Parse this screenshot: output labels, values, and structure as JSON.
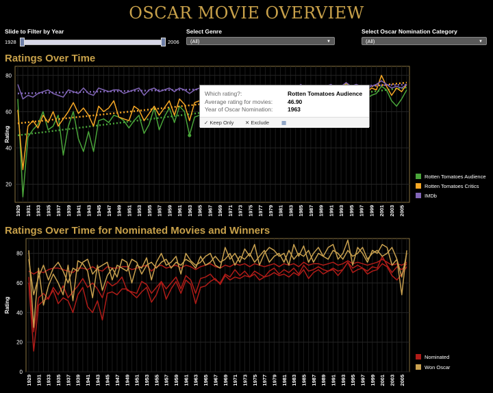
{
  "title": "OSCAR MOVIE OVERVIEW",
  "filters": {
    "year_label": "Slide to Filter by Year",
    "year_min": "1928",
    "year_max": "2006",
    "genre_label": "Select Genre",
    "genre_value": "(All)",
    "category_label": "Select Oscar Nomination Category",
    "category_value": "(All)"
  },
  "sections": {
    "top": "Ratings Over Time",
    "bottom": "Ratings Over Time for Nominated Movies and Winners"
  },
  "tooltip": {
    "k1": "Which rating?:",
    "v1": "Rotten Tomatoes Audience",
    "k2": "Average rating for movies:",
    "v2": "46.90",
    "k3": "Year of Oscar Nomination:",
    "v3": "1963",
    "keep": "Keep Only",
    "exclude": "Exclude"
  },
  "icons": [
    "checkmark-icon",
    "x-icon",
    "grid-icon",
    "chevron-down-icon"
  ],
  "chart_data": [
    {
      "type": "line",
      "title": "Ratings Over Time",
      "ylabel": "Rating",
      "ylim": [
        10,
        85
      ],
      "yticks": [
        20,
        40,
        60,
        80
      ],
      "x": [
        1929,
        1930,
        1931,
        1932,
        1933,
        1934,
        1935,
        1936,
        1937,
        1938,
        1939,
        1940,
        1941,
        1942,
        1943,
        1944,
        1945,
        1946,
        1947,
        1948,
        1949,
        1950,
        1951,
        1952,
        1953,
        1954,
        1955,
        1956,
        1957,
        1958,
        1959,
        1960,
        1961,
        1962,
        1963,
        1964,
        1965,
        1966,
        1967,
        1968,
        1969,
        1970,
        1971,
        1972,
        1973,
        1974,
        1975,
        1976,
        1977,
        1978,
        1979,
        1980,
        1981,
        1982,
        1983,
        1984,
        1985,
        1986,
        1987,
        1988,
        1989,
        1990,
        1991,
        1992,
        1993,
        1994,
        1995,
        1996,
        1997,
        1998,
        1999,
        2000,
        2001,
        2002,
        2003,
        2004,
        2005,
        2006
      ],
      "xtick_labels": [
        "1929",
        "1931",
        "1933",
        "1935",
        "1937",
        "1939",
        "1941",
        "1943",
        "1945",
        "1947",
        "1949",
        "1951",
        "1953",
        "1955",
        "1957",
        "1959",
        "1961",
        "1963",
        "1965",
        "1967",
        "1969",
        "1971",
        "1973",
        "1975",
        "1977",
        "1979",
        "1981",
        "1983",
        "1985",
        "1987",
        "1989",
        "1991",
        "1993",
        "1995",
        "1997",
        "1999",
        "2001",
        "2003",
        "2005"
      ],
      "legend_position": "right",
      "grid": true,
      "series": [
        {
          "name": "Rotten Tomatoes Audience",
          "color": "#4aa63a",
          "values": [
            67,
            13,
            46,
            50,
            53,
            60,
            50,
            52,
            58,
            36,
            52,
            60,
            45,
            38,
            49,
            38,
            55,
            56,
            54,
            58,
            57,
            55,
            51,
            55,
            58,
            48,
            53,
            62,
            50,
            57,
            62,
            54,
            63,
            60,
            47,
            57,
            58,
            62,
            64,
            60,
            66,
            63,
            65,
            64,
            66,
            65,
            67,
            63,
            65,
            66,
            68,
            66,
            67,
            65,
            68,
            66,
            70,
            64,
            68,
            70,
            67,
            69,
            70,
            66,
            70,
            75,
            68,
            70,
            71,
            67,
            69,
            70,
            74,
            72,
            66,
            63,
            67,
            72
          ]
        },
        {
          "name": "Rotten Tomatoes Critics",
          "color": "#f7a825",
          "values": [
            61,
            28,
            52,
            55,
            51,
            58,
            54,
            60,
            52,
            56,
            60,
            65,
            59,
            62,
            58,
            52,
            63,
            60,
            62,
            66,
            57,
            56,
            55,
            63,
            61,
            55,
            59,
            63,
            58,
            62,
            66,
            58,
            67,
            64,
            55,
            65,
            66,
            68,
            64,
            62,
            68,
            66,
            71,
            67,
            70,
            66,
            70,
            68,
            66,
            70,
            72,
            68,
            71,
            69,
            72,
            68,
            74,
            70,
            71,
            73,
            71,
            70,
            72,
            70,
            71,
            76,
            72,
            74,
            72,
            70,
            73,
            72,
            80,
            74,
            69,
            73,
            71,
            75
          ]
        },
        {
          "name": "IMDb",
          "color": "#8266b8",
          "values": [
            75,
            67,
            69,
            68,
            70,
            71,
            72,
            70,
            69,
            68,
            72,
            71,
            70,
            73,
            70,
            69,
            73,
            72,
            71,
            72,
            72,
            70,
            71,
            72,
            73,
            69,
            72,
            73,
            71,
            72,
            73,
            71,
            73,
            72,
            70,
            72,
            73,
            74,
            72,
            71,
            73,
            72,
            74,
            73,
            74,
            72,
            74,
            73,
            72,
            73,
            74,
            72,
            74,
            73,
            74,
            72,
            75,
            73,
            74,
            74,
            73,
            74,
            75,
            73,
            74,
            76,
            74,
            75,
            74,
            73,
            74,
            75,
            77,
            75,
            73,
            74,
            73,
            75
          ]
        }
      ]
    },
    {
      "type": "line",
      "title": "Ratings Over Time for Nominated Movies and Winners",
      "ylabel": "Rating",
      "ylim": [
        0,
        90
      ],
      "yticks": [
        0,
        20,
        40,
        60,
        80
      ],
      "x": [
        1929,
        1930,
        1931,
        1932,
        1933,
        1934,
        1935,
        1936,
        1937,
        1938,
        1939,
        1940,
        1941,
        1942,
        1943,
        1944,
        1945,
        1946,
        1947,
        1948,
        1949,
        1950,
        1951,
        1952,
        1953,
        1954,
        1955,
        1956,
        1957,
        1958,
        1959,
        1960,
        1961,
        1962,
        1963,
        1964,
        1965,
        1966,
        1967,
        1968,
        1969,
        1970,
        1971,
        1972,
        1973,
        1974,
        1975,
        1976,
        1977,
        1978,
        1979,
        1980,
        1981,
        1982,
        1983,
        1984,
        1985,
        1986,
        1987,
        1988,
        1989,
        1990,
        1991,
        1992,
        1993,
        1994,
        1995,
        1996,
        1997,
        1998,
        1999,
        2000,
        2001,
        2002,
        2003,
        2004,
        2005,
        2006
      ],
      "xtick_labels": [
        "1929",
        "1931",
        "1933",
        "1935",
        "1937",
        "1939",
        "1941",
        "1943",
        "1945",
        "1947",
        "1949",
        "1951",
        "1953",
        "1955",
        "1957",
        "1959",
        "1961",
        "1963",
        "1965",
        "1967",
        "1969",
        "1971",
        "1973",
        "1975",
        "1977",
        "1979",
        "1981",
        "1983",
        "1985",
        "1987",
        "1989",
        "1991",
        "1993",
        "1995",
        "1997",
        "1999",
        "2001",
        "2003",
        "2005"
      ],
      "legend_position": "right",
      "grid": true,
      "series": [
        {
          "name": "Nominated",
          "color": "#b01c18",
          "values": [
            60,
            14,
            45,
            48,
            50,
            55,
            46,
            50,
            48,
            40,
            52,
            57,
            44,
            40,
            48,
            35,
            53,
            54,
            52,
            56,
            56,
            53,
            50,
            54,
            57,
            47,
            52,
            61,
            49,
            56,
            61,
            53,
            62,
            59,
            46,
            57,
            58,
            61,
            63,
            59,
            65,
            62,
            64,
            63,
            65,
            64,
            66,
            62,
            64,
            65,
            67,
            65,
            66,
            64,
            67,
            65,
            69,
            63,
            67,
            69,
            66,
            68,
            69,
            65,
            69,
            74,
            67,
            69,
            70,
            66,
            68,
            69,
            73,
            71,
            65,
            62,
            66,
            71
          ]
        },
        {
          "name": "Nominated",
          "color": "#b01c18",
          "values": [
            64,
            27,
            50,
            53,
            49,
            57,
            52,
            58,
            50,
            54,
            58,
            63,
            57,
            60,
            56,
            50,
            61,
            58,
            60,
            64,
            55,
            54,
            53,
            61,
            59,
            53,
            57,
            61,
            56,
            60,
            64,
            56,
            65,
            62,
            53,
            63,
            64,
            66,
            62,
            60,
            66,
            64,
            69,
            65,
            68,
            64,
            68,
            66,
            64,
            68,
            70,
            66,
            69,
            67,
            70,
            66,
            72,
            68,
            69,
            71,
            69,
            68,
            70,
            68,
            69,
            74,
            70,
            72,
            70,
            68,
            71,
            70,
            78,
            72,
            67,
            71,
            69,
            73
          ]
        },
        {
          "name": "Nominated",
          "color": "#b01c18",
          "values": [
            68,
            66,
            68,
            67,
            69,
            70,
            70,
            69,
            68,
            67,
            70,
            70,
            69,
            71,
            69,
            68,
            71,
            70,
            70,
            71,
            71,
            69,
            70,
            71,
            72,
            68,
            71,
            72,
            70,
            71,
            72,
            70,
            72,
            71,
            69,
            71,
            72,
            73,
            71,
            70,
            72,
            71,
            73,
            72,
            73,
            71,
            73,
            72,
            71,
            72,
            73,
            71,
            73,
            72,
            73,
            71,
            74,
            72,
            73,
            73,
            72,
            73,
            74,
            72,
            73,
            75,
            73,
            74,
            73,
            72,
            73,
            74,
            76,
            74,
            72,
            73,
            72,
            74
          ]
        },
        {
          "name": "Won Oscar",
          "color": "#c9a14f",
          "values": [
            82,
            30,
            70,
            45,
            58,
            66,
            60,
            52,
            72,
            48,
            75,
            73,
            68,
            50,
            72,
            55,
            65,
            70,
            64,
            76,
            74,
            60,
            72,
            70,
            77,
            62,
            74,
            80,
            72,
            74,
            78,
            66,
            80,
            75,
            72,
            74,
            78,
            80,
            72,
            70,
            84,
            76,
            80,
            74,
            83,
            78,
            86,
            72,
            80,
            84,
            82,
            78,
            80,
            72,
            86,
            78,
            85,
            74,
            80,
            84,
            78,
            84,
            86,
            76,
            80,
            89,
            72,
            84,
            80,
            74,
            82,
            80,
            86,
            84,
            72,
            76,
            52,
            82
          ]
        },
        {
          "name": "Won Oscar",
          "color": "#c9a14f",
          "values": [
            76,
            52,
            64,
            72,
            62,
            70,
            74,
            68,
            60,
            70,
            68,
            74,
            76,
            66,
            70,
            72,
            74,
            62,
            72,
            70,
            68,
            76,
            74,
            66,
            72,
            74,
            70,
            74,
            76,
            70,
            74,
            72,
            76,
            74,
            70,
            78,
            72,
            74,
            78,
            74,
            76,
            80,
            72,
            78,
            76,
            80,
            74,
            78,
            82,
            74,
            78,
            80,
            74,
            82,
            76,
            80,
            78,
            82,
            74,
            80,
            78,
            76,
            82,
            80,
            76,
            82,
            78,
            80,
            84,
            76,
            80,
            82,
            78,
            80,
            84,
            76,
            64,
            80
          ]
        }
      ]
    }
  ]
}
